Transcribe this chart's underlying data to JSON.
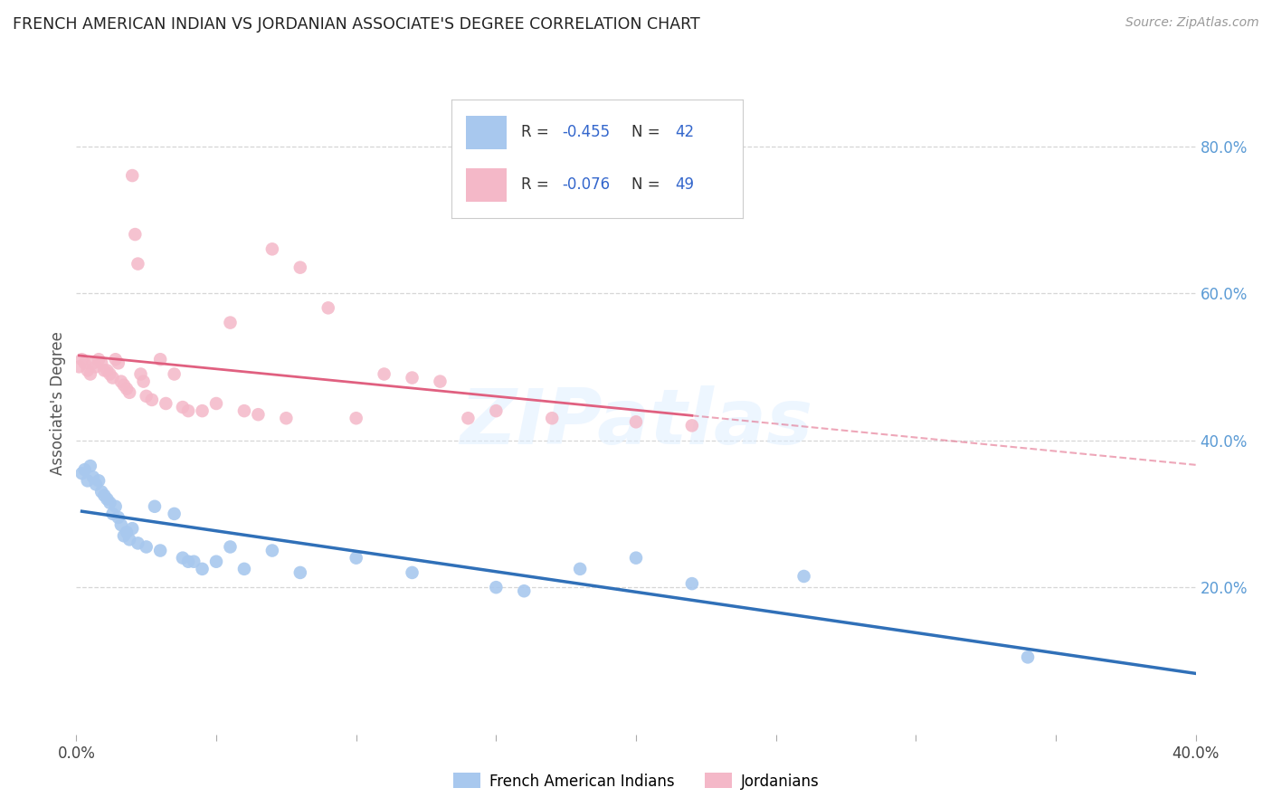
{
  "title": "FRENCH AMERICAN INDIAN VS JORDANIAN ASSOCIATE'S DEGREE CORRELATION CHART",
  "source": "Source: ZipAtlas.com",
  "ylabel": "Associate's Degree",
  "legend_blue_label": "French American Indians",
  "legend_pink_label": "Jordanians",
  "blue_R": -0.455,
  "blue_N": 42,
  "pink_R": -0.076,
  "pink_N": 49,
  "xlim": [
    0.0,
    0.4
  ],
  "ylim": [
    0.0,
    0.9
  ],
  "ytick_labels_right": [
    "20.0%",
    "40.0%",
    "60.0%",
    "80.0%"
  ],
  "ytick_positions_right": [
    0.2,
    0.4,
    0.6,
    0.8
  ],
  "blue_color": "#a8c8ee",
  "pink_color": "#f4b8c8",
  "blue_line_color": "#3070b8",
  "pink_line_color": "#e06080",
  "background_color": "#ffffff",
  "grid_color": "#cccccc",
  "watermark": "ZIPatlas",
  "blue_scatter_x": [
    0.002,
    0.003,
    0.004,
    0.005,
    0.006,
    0.007,
    0.008,
    0.009,
    0.01,
    0.011,
    0.012,
    0.013,
    0.014,
    0.015,
    0.016,
    0.017,
    0.018,
    0.019,
    0.02,
    0.022,
    0.025,
    0.028,
    0.03,
    0.035,
    0.038,
    0.04,
    0.042,
    0.045,
    0.05,
    0.055,
    0.06,
    0.07,
    0.08,
    0.1,
    0.12,
    0.15,
    0.16,
    0.18,
    0.2,
    0.22,
    0.26,
    0.34
  ],
  "blue_scatter_y": [
    0.355,
    0.36,
    0.345,
    0.365,
    0.35,
    0.34,
    0.345,
    0.33,
    0.325,
    0.32,
    0.315,
    0.3,
    0.31,
    0.295,
    0.285,
    0.27,
    0.275,
    0.265,
    0.28,
    0.26,
    0.255,
    0.31,
    0.25,
    0.3,
    0.24,
    0.235,
    0.235,
    0.225,
    0.235,
    0.255,
    0.225,
    0.25,
    0.22,
    0.24,
    0.22,
    0.2,
    0.195,
    0.225,
    0.24,
    0.205,
    0.215,
    0.105
  ],
  "pink_scatter_x": [
    0.001,
    0.002,
    0.003,
    0.004,
    0.005,
    0.006,
    0.007,
    0.008,
    0.009,
    0.01,
    0.011,
    0.012,
    0.013,
    0.014,
    0.015,
    0.016,
    0.017,
    0.018,
    0.019,
    0.02,
    0.021,
    0.022,
    0.023,
    0.024,
    0.025,
    0.027,
    0.03,
    0.032,
    0.035,
    0.038,
    0.04,
    0.045,
    0.05,
    0.055,
    0.06,
    0.065,
    0.07,
    0.075,
    0.08,
    0.09,
    0.1,
    0.11,
    0.12,
    0.13,
    0.14,
    0.15,
    0.17,
    0.2,
    0.22
  ],
  "pink_scatter_y": [
    0.5,
    0.51,
    0.505,
    0.495,
    0.49,
    0.505,
    0.5,
    0.51,
    0.505,
    0.495,
    0.495,
    0.49,
    0.485,
    0.51,
    0.505,
    0.48,
    0.475,
    0.47,
    0.465,
    0.76,
    0.68,
    0.64,
    0.49,
    0.48,
    0.46,
    0.455,
    0.51,
    0.45,
    0.49,
    0.445,
    0.44,
    0.44,
    0.45,
    0.56,
    0.44,
    0.435,
    0.66,
    0.43,
    0.635,
    0.58,
    0.43,
    0.49,
    0.485,
    0.48,
    0.43,
    0.44,
    0.43,
    0.425,
    0.42
  ]
}
